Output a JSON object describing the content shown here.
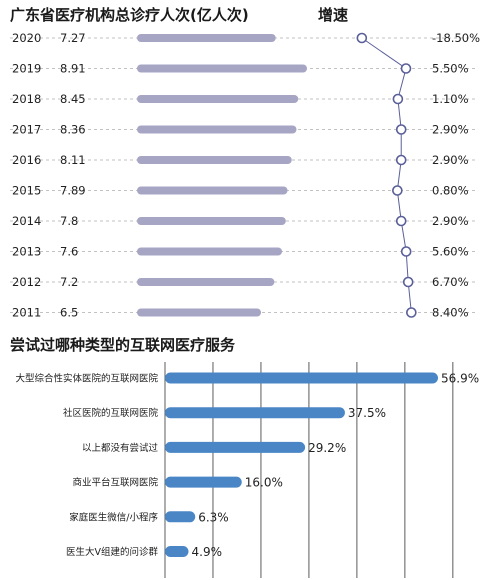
{
  "chart_data": [
    {
      "type": "bar",
      "title": "广东省医疗机构总诊疗人次(亿人次)",
      "growth_title": "增速",
      "categories": [
        "2020",
        "2019",
        "2018",
        "2017",
        "2016",
        "2015",
        "2014",
        "2013",
        "2012",
        "2011"
      ],
      "values": [
        7.27,
        8.91,
        8.45,
        8.36,
        8.11,
        7.89,
        7.8,
        7.6,
        7.2,
        6.5
      ],
      "value_labels": [
        "7.27",
        "8.91",
        "8.45",
        "8.36",
        "8.11",
        "7.89",
        "7.8",
        "7.6",
        "7.2",
        "6.5"
      ],
      "growth_rate": [
        -18.5,
        5.5,
        1.1,
        2.9,
        2.9,
        0.8,
        2.9,
        5.6,
        6.7,
        8.4
      ],
      "growth_labels": [
        "-18.50%",
        "5.50%",
        "1.10%",
        "2.90%",
        "2.90%",
        "0.80%",
        "2.90%",
        "5.60%",
        "6.70%",
        "8.40%"
      ],
      "orientation": "horizontal",
      "grid": "dashed row lines",
      "bar_color": "#a7a5c4",
      "line_color": "#5a5f99"
    },
    {
      "type": "bar",
      "title": "尝试过哪种类型的互联网医疗服务",
      "categories": [
        "大型综合性实体医院的互联网医院",
        "社区医院的互联网医院",
        "以上都没有尝试过",
        "商业平台互联网医院",
        "家庭医生微信/小程序",
        "医生大V组建的问诊群"
      ],
      "values": [
        56.9,
        37.5,
        29.2,
        16.0,
        6.3,
        4.9
      ],
      "value_labels": [
        "56.9%",
        "37.5%",
        "29.2%",
        "16.0%",
        "6.3%",
        "4.9%"
      ],
      "orientation": "horizontal",
      "grid": "vertical lines",
      "bar_color": "#4a86c6"
    }
  ]
}
